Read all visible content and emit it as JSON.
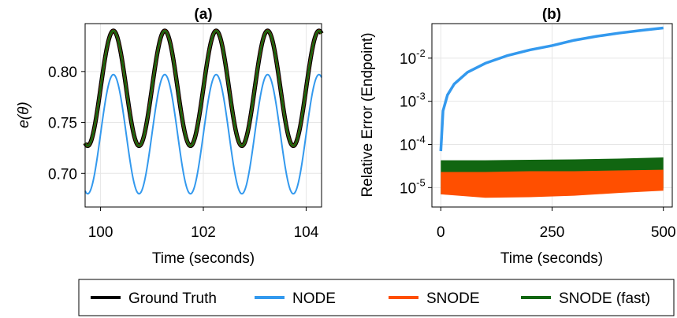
{
  "colors": {
    "ground_truth": "#000000",
    "node": "#3399ee",
    "snode": "#ff4f00",
    "snode_fast": "#116611",
    "grid": "#e6e6e6"
  },
  "legend": {
    "entries": [
      {
        "label": "Ground Truth",
        "color": "#000000"
      },
      {
        "label": "NODE",
        "color": "#3399ee"
      },
      {
        "label": "SNODE",
        "color": "#ff4f00"
      },
      {
        "label": "SNODE (fast)",
        "color": "#116611"
      }
    ]
  },
  "chart_data": [
    {
      "type": "line",
      "title": "(a)",
      "xlabel": "Time (seconds)",
      "ylabel": "e(θ)",
      "xlim": [
        99.7,
        104.3
      ],
      "ylim": [
        0.667,
        0.847
      ],
      "xticks": [
        100,
        102,
        104
      ],
      "xtick_labels": [
        "100",
        "102",
        "104"
      ],
      "yticks": [
        0.7,
        0.75,
        0.8
      ],
      "ytick_labels": [
        "0.70",
        "0.75",
        "0.80"
      ],
      "grid": true,
      "series": [
        {
          "name": "Ground Truth",
          "period": 1.0,
          "peak_time": 100.25,
          "min": 0.727,
          "max": 0.84
        },
        {
          "name": "SNODE",
          "period": 1.0,
          "peak_time": 100.25,
          "min": 0.727,
          "max": 0.84
        },
        {
          "name": "SNODE (fast)",
          "period": 1.0,
          "peak_time": 100.25,
          "min": 0.727,
          "max": 0.84
        },
        {
          "name": "NODE",
          "period": 1.0,
          "peak_time": 100.25,
          "min": 0.68,
          "max": 0.797
        }
      ]
    },
    {
      "type": "area",
      "title": "(b)",
      "xlabel": "Time (seconds)",
      "ylabel": "Relative Error (Endpoint)",
      "yscale": "log",
      "xlim": [
        -20,
        520
      ],
      "ylim_log10": [
        -5.45,
        -1.2
      ],
      "xticks": [
        0,
        250,
        500
      ],
      "xtick_labels": [
        "0",
        "250",
        "500"
      ],
      "ytick_exponents": [
        -5,
        -4,
        -3,
        -2
      ],
      "ytick_base": "10",
      "grid": true,
      "series": [
        {
          "name": "NODE",
          "kind": "line",
          "t": [
            0,
            5,
            15,
            30,
            60,
            100,
            150,
            200,
            250,
            300,
            350,
            400,
            450,
            500
          ],
          "y": [
            7e-05,
            0.0006,
            0.0014,
            0.0025,
            0.0047,
            0.0076,
            0.0115,
            0.0155,
            0.0195,
            0.026,
            0.032,
            0.038,
            0.044,
            0.05
          ]
        },
        {
          "name": "SNODE (fast)",
          "kind": "band",
          "t": [
            0,
            100,
            200,
            300,
            400,
            500
          ],
          "lower": [
            7e-06,
            6.5e-06,
            6.8e-06,
            7.2e-06,
            8.2e-06,
            9.5e-06
          ],
          "upper": [
            4.3e-05,
            4.3e-05,
            4.4e-05,
            4.5e-05,
            4.7e-05,
            5e-05
          ]
        },
        {
          "name": "SNODE",
          "kind": "band",
          "t": [
            0,
            100,
            200,
            300,
            400,
            500
          ],
          "lower": [
            7e-06,
            5.8e-06,
            6e-06,
            6.5e-06,
            7.5e-06,
            8.5e-06
          ],
          "upper": [
            2.3e-05,
            2.3e-05,
            2.4e-05,
            2.4e-05,
            2.5e-05,
            2.6e-05
          ]
        }
      ]
    }
  ]
}
